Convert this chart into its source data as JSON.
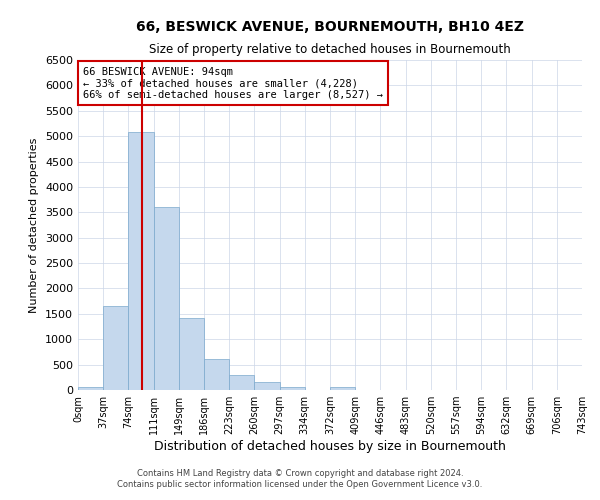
{
  "title": "66, BESWICK AVENUE, BOURNEMOUTH, BH10 4EZ",
  "subtitle": "Size of property relative to detached houses in Bournemouth",
  "xlabel": "Distribution of detached houses by size in Bournemouth",
  "ylabel": "Number of detached properties",
  "bar_color": "#c5d8ed",
  "bar_edge_color": "#7aa8cc",
  "bin_edges": [
    0,
    37,
    74,
    111,
    148,
    185,
    222,
    259,
    296,
    333,
    370,
    407,
    444,
    481,
    518,
    555,
    592,
    629,
    666,
    703,
    740
  ],
  "bin_labels": [
    "0sqm",
    "37sqm",
    "74sqm",
    "111sqm",
    "149sqm",
    "186sqm",
    "223sqm",
    "260sqm",
    "297sqm",
    "334sqm",
    "372sqm",
    "409sqm",
    "446sqm",
    "483sqm",
    "520sqm",
    "557sqm",
    "594sqm",
    "632sqm",
    "669sqm",
    "706sqm",
    "743sqm"
  ],
  "bar_heights": [
    50,
    1650,
    5080,
    3600,
    1420,
    620,
    300,
    150,
    60,
    0,
    60,
    0,
    0,
    0,
    0,
    0,
    0,
    0,
    0,
    0
  ],
  "ylim": [
    0,
    6500
  ],
  "yticks": [
    0,
    500,
    1000,
    1500,
    2000,
    2500,
    3000,
    3500,
    4000,
    4500,
    5000,
    5500,
    6000,
    6500
  ],
  "property_sqm": 94,
  "vline_color": "#cc0000",
  "annotation_title": "66 BESWICK AVENUE: 94sqm",
  "annotation_line1": "← 33% of detached houses are smaller (4,228)",
  "annotation_line2": "66% of semi-detached houses are larger (8,527) →",
  "annotation_box_color": "#cc0000",
  "footer1": "Contains HM Land Registry data © Crown copyright and database right 2024.",
  "footer2": "Contains public sector information licensed under the Open Government Licence v3.0.",
  "background_color": "#ffffff",
  "grid_color": "#ccd6e8"
}
